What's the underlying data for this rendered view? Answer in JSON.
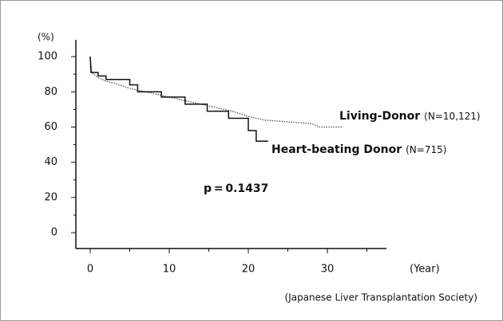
{
  "chart_data": {
    "type": "line",
    "y_unit_label": "(%)",
    "x_unit_label": "(Year)",
    "source": "(Japanese Liver Transplantation Society)",
    "annotation": "p = 0.1437",
    "xlim": [
      -2,
      37
    ],
    "ylim": [
      -9,
      110
    ],
    "xticks": [
      0,
      10,
      20,
      30
    ],
    "xminor": [
      5,
      15,
      25,
      35
    ],
    "yticks": [
      0,
      20,
      40,
      60,
      80,
      100
    ],
    "yminor": [
      10,
      30,
      50,
      70,
      90
    ],
    "series": [
      {
        "name": "Living-Donor",
        "note": "(N=10,121)",
        "color": "#555555",
        "dash": true,
        "x": [
          0,
          0.2,
          1,
          2,
          3,
          5,
          8,
          10,
          12,
          15,
          18,
          20,
          22,
          25,
          28,
          29,
          32
        ],
        "values": [
          100,
          91,
          88,
          86,
          85,
          82,
          79,
          77,
          75,
          72,
          69,
          66,
          64,
          63,
          62,
          60,
          60
        ]
      },
      {
        "name": "Heart-beating Donor",
        "note": "(N=715)",
        "color": "#111111",
        "dash": false,
        "x": [
          0,
          0.1,
          1,
          1,
          2,
          2,
          5,
          5,
          6,
          6,
          9,
          9,
          12,
          12,
          14.8,
          14.8,
          17.5,
          17.5,
          20,
          20,
          21,
          21,
          22.5
        ],
        "values": [
          100,
          91,
          91,
          89,
          89,
          87,
          87,
          84,
          84,
          80,
          80,
          77,
          77,
          73,
          73,
          69,
          69,
          65,
          65,
          58,
          58,
          52,
          52
        ]
      }
    ]
  }
}
